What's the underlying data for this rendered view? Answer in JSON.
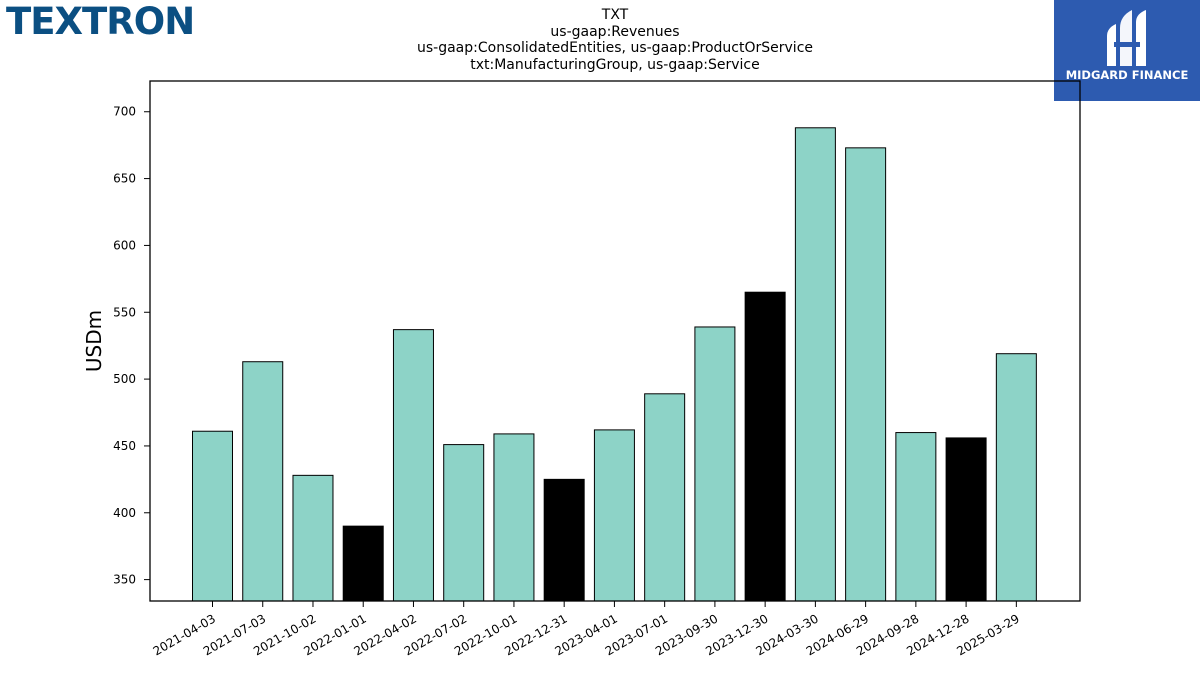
{
  "branding": {
    "company_logo_text": "TEXTRON",
    "publisher_logo_text": "MIDGARD FINANCE",
    "logo_color": "#0b4f82",
    "publisher_bg_color": "#2d5bb0"
  },
  "chart_data": {
    "type": "bar",
    "title_lines": [
      "TXT",
      "us-gaap:Revenues",
      "us-gaap:ConsolidatedEntities, us-gaap:ProductOrService",
      "txt:ManufacturingGroup, us-gaap:Service"
    ],
    "xlabel": "",
    "ylabel": "USDm",
    "ylim": [
      334,
      723
    ],
    "yticks": [
      350,
      400,
      450,
      500,
      550,
      600,
      650,
      700
    ],
    "grid": false,
    "categories": [
      "2021-04-03",
      "2021-07-03",
      "2021-10-02",
      "2022-01-01",
      "2022-04-02",
      "2022-07-02",
      "2022-10-01",
      "2022-12-31",
      "2023-04-01",
      "2023-07-01",
      "2023-09-30",
      "2023-12-30",
      "2024-03-30",
      "2024-06-29",
      "2024-09-28",
      "2024-12-28",
      "2025-03-29"
    ],
    "values": [
      461,
      513,
      428,
      390,
      537,
      451,
      459,
      425,
      462,
      489,
      539,
      565,
      688,
      673,
      460,
      456,
      519
    ],
    "highlight": [
      false,
      false,
      false,
      true,
      false,
      false,
      false,
      true,
      false,
      false,
      false,
      true,
      false,
      false,
      false,
      true,
      false
    ],
    "colors": {
      "bar": "#8dd3c7",
      "highlight": "#000000",
      "edge": "#000000"
    }
  }
}
